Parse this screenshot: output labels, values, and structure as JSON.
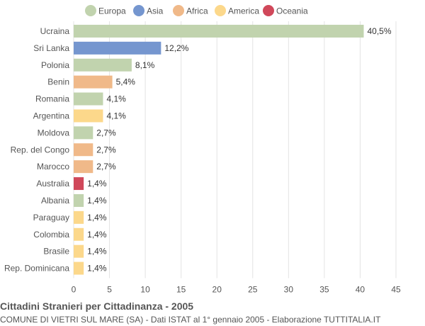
{
  "chart_data": {
    "type": "bar",
    "orientation": "horizontal",
    "categories": [
      "Ucraina",
      "Sri Lanka",
      "Polonia",
      "Benin",
      "Romania",
      "Argentina",
      "Moldova",
      "Rep. del Congo",
      "Marocco",
      "Australia",
      "Albania",
      "Paraguay",
      "Colombia",
      "Brasile",
      "Rep. Dominicana"
    ],
    "values": [
      40.5,
      12.2,
      8.1,
      5.4,
      4.1,
      4.1,
      2.7,
      2.7,
      2.7,
      1.4,
      1.4,
      1.4,
      1.4,
      1.4,
      1.4
    ],
    "value_labels": [
      "40,5%",
      "12,2%",
      "8,1%",
      "5,4%",
      "4,1%",
      "4,1%",
      "2,7%",
      "2,7%",
      "2,7%",
      "1,4%",
      "1,4%",
      "1,4%",
      "1,4%",
      "1,4%",
      "1,4%"
    ],
    "groups": [
      "Europa",
      "Asia",
      "Europa",
      "Africa",
      "Europa",
      "America",
      "Europa",
      "Africa",
      "Africa",
      "Oceania",
      "Europa",
      "America",
      "America",
      "America",
      "America"
    ],
    "legend": [
      {
        "name": "Europa",
        "color": "#c1d3ae"
      },
      {
        "name": "Asia",
        "color": "#7596cf"
      },
      {
        "name": "Africa",
        "color": "#f0b989"
      },
      {
        "name": "America",
        "color": "#fcd88b"
      },
      {
        "name": "Oceania",
        "color": "#d0485a"
      }
    ],
    "legend_position": "top",
    "xlim": [
      0,
      45
    ],
    "xticks": [
      0,
      5,
      10,
      15,
      20,
      25,
      30,
      35,
      40,
      45
    ],
    "grid": true
  },
  "caption": {
    "title": "Cittadini Stranieri per Cittadinanza - 2005",
    "subtitle": "COMUNE DI VIETRI SUL MARE (SA) - Dati ISTAT al 1° gennaio 2005 - Elaborazione TUTTITALIA.IT"
  }
}
